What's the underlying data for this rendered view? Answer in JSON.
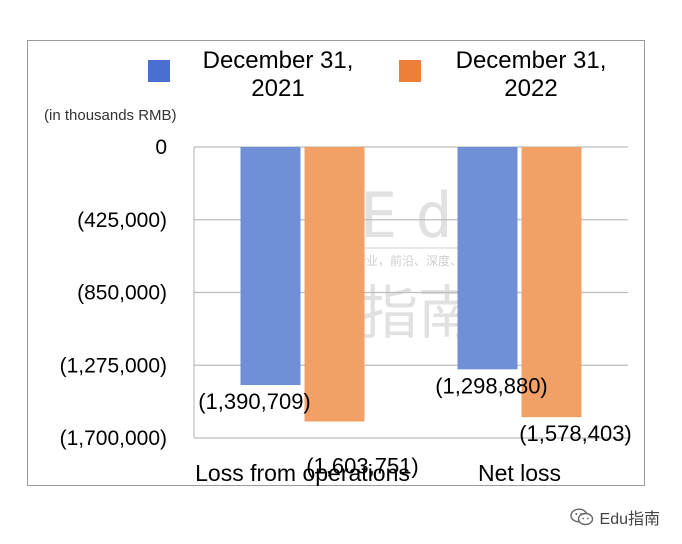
{
  "chart_data": {
    "type": "bar",
    "unit_note": "(in thousands RMB)",
    "categories": [
      "Loss from operations",
      "Net loss"
    ],
    "series": [
      {
        "name": "December 31, 2021",
        "legend_lines": [
          "December 31,",
          "2021"
        ],
        "color": "#6f8fd6",
        "values": [
          -1390709,
          -1298880
        ],
        "labels": [
          "(1,390,709)",
          "(1,298,880)"
        ]
      },
      {
        "name": "December 31, 2022",
        "legend_lines": [
          "December 31,",
          "2022"
        ],
        "color": "#f2a065",
        "values": [
          -1603751,
          -1578403
        ],
        "labels": [
          "(1,603,751)",
          "(1,578,403)"
        ]
      }
    ],
    "legend_swatch_colors": [
      "#4a6fd2",
      "#ee7f3a"
    ],
    "yticks": [
      0,
      -425000,
      -850000,
      -1275000,
      -1700000
    ],
    "ytick_labels": [
      "0",
      "(425,000)",
      "(850,000)",
      "(1,275,000)",
      "(1,700,000)"
    ],
    "ylim": [
      -1700000,
      0
    ],
    "grid": true,
    "legend_position": "top"
  },
  "watermark": {
    "latin": "Edu",
    "chinese": "指南",
    "tagline": "教育行业，前沿、深度、独家"
  },
  "footer": {
    "account": "Edu指南",
    "icon": "wechat-icon"
  }
}
